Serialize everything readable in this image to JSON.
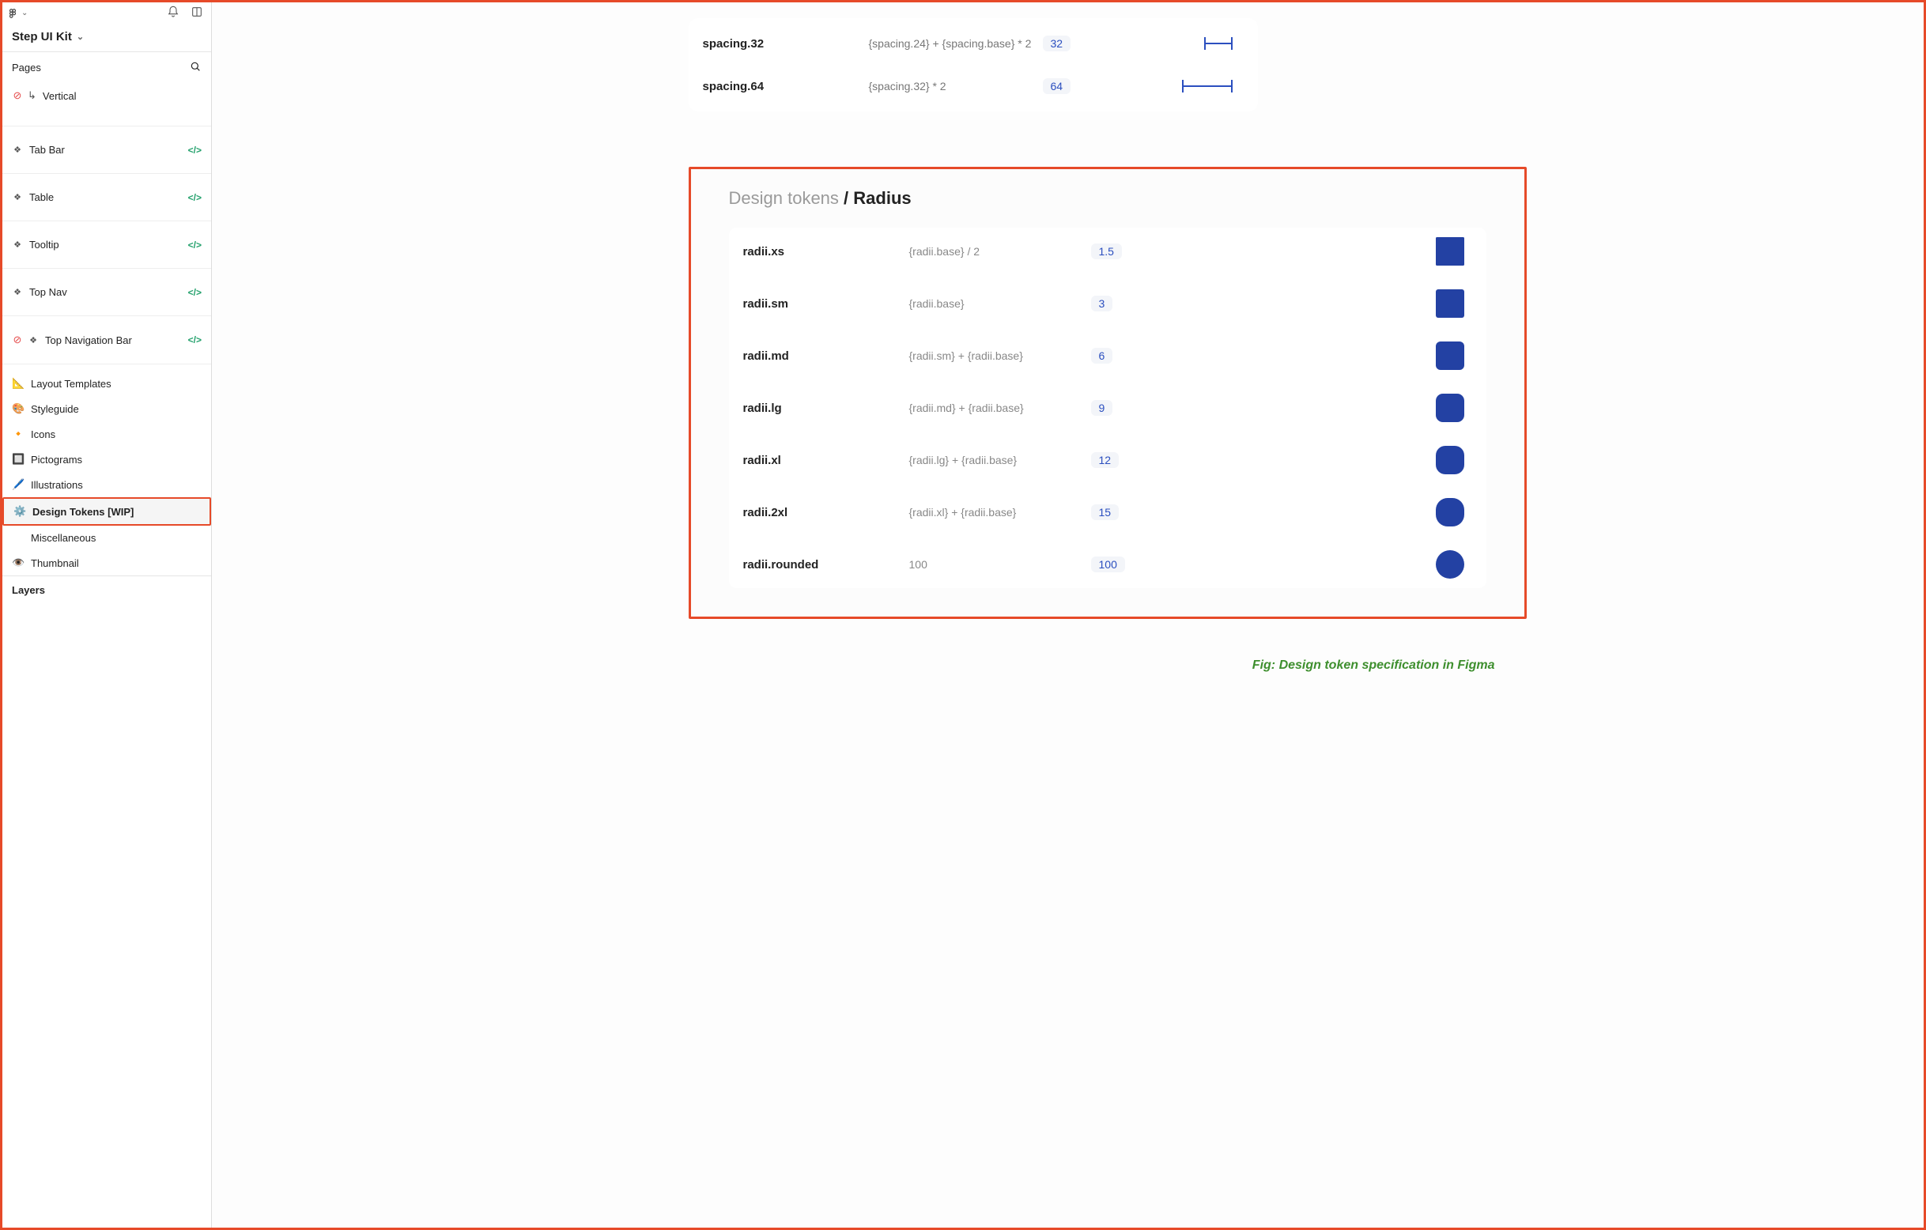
{
  "file": {
    "title": "Step UI Kit"
  },
  "pagesHeader": "Pages",
  "pages": {
    "vertical": {
      "label": "Vertical"
    },
    "tabbar": {
      "label": "Tab Bar"
    },
    "table": {
      "label": "Table"
    },
    "tooltip": {
      "label": "Tooltip"
    },
    "topnav": {
      "label": "Top Nav"
    },
    "topnavbar": {
      "label": "Top Navigation Bar"
    }
  },
  "layers": {
    "layout": {
      "emoji": "📐",
      "label": "Layout Templates"
    },
    "styleguide": {
      "emoji": "🎨",
      "label": "Styleguide"
    },
    "icons": {
      "emoji": "🔸",
      "label": "Icons"
    },
    "pictograms": {
      "emoji": "🔲",
      "label": "Pictograms"
    },
    "illustrations": {
      "emoji": "🖊️",
      "label": "Illustrations"
    },
    "designtokens": {
      "emoji": "⚙️",
      "label": "Design Tokens [WIP]"
    },
    "misc": {
      "emoji": "",
      "label": "Miscellaneous"
    },
    "thumbnail": {
      "emoji": "👁️",
      "label": "Thumbnail"
    }
  },
  "layersHeader": "Layers",
  "spacingRows": [
    {
      "name": "spacing.32",
      "expr": "{spacing.24} + {spacing.base} * 2",
      "value": "32",
      "barWidth": 32
    },
    {
      "name": "spacing.64",
      "expr": "{spacing.32} * 2",
      "value": "64",
      "barWidth": 60
    }
  ],
  "frame": {
    "titleMuted": "Design tokens ",
    "titleSlash": "/ ",
    "titleStrong": "Radius"
  },
  "radiusRows": [
    {
      "name": "radii.xs",
      "expr": "{radii.base} / 2",
      "value": "1.5",
      "radius": 1.5
    },
    {
      "name": "radii.sm",
      "expr": "{radii.base}",
      "value": "3",
      "radius": 3
    },
    {
      "name": "radii.md",
      "expr": "{radii.sm} + {radii.base}",
      "value": "6",
      "radius": 6
    },
    {
      "name": "radii.lg",
      "expr": "{radii.md} + {radii.base}",
      "value": "9",
      "radius": 9
    },
    {
      "name": "radii.xl",
      "expr": "{radii.lg} + {radii.base}",
      "value": "12",
      "radius": 12
    },
    {
      "name": "radii.2xl",
      "expr": "{radii.xl} + {radii.base}",
      "value": "15",
      "radius": 15
    },
    {
      "name": "radii.rounded",
      "expr": "100",
      "value": "100",
      "radius": 100
    }
  ],
  "caption": "Fig: Design token specification in Figma",
  "colors": {
    "swatch": "#2341a3",
    "valueText": "#2b4fbf",
    "highlight": "#e64a29"
  }
}
